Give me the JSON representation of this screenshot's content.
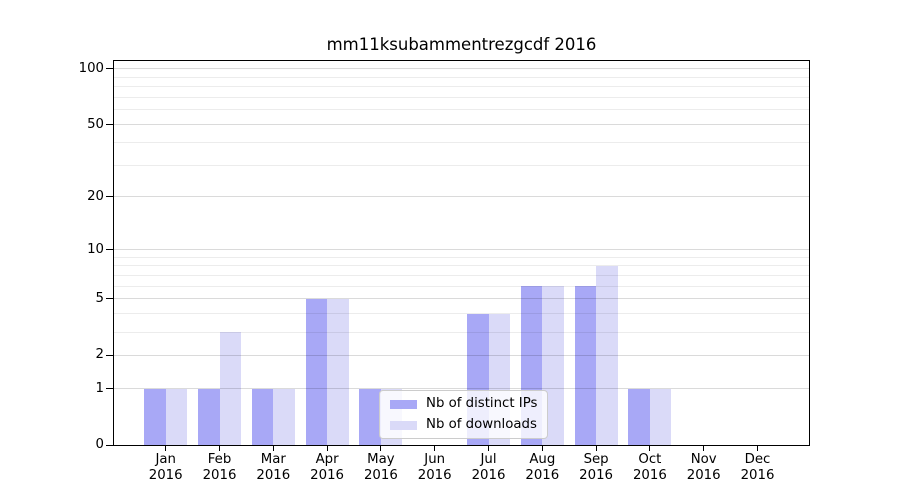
{
  "chart_data": {
    "type": "bar",
    "title": "mm11ksubammentrezgcdf 2016",
    "year_label": "2016",
    "months": [
      "Jan",
      "Feb",
      "Mar",
      "Apr",
      "May",
      "Jun",
      "Jul",
      "Aug",
      "Sep",
      "Oct",
      "Nov",
      "Dec"
    ],
    "series": [
      {
        "name": "Nb of distinct IPs",
        "color": "#a8a8f6",
        "values": [
          1,
          1,
          1,
          5,
          1,
          0,
          4,
          6,
          6,
          1,
          0,
          0
        ]
      },
      {
        "name": "Nb of downloads",
        "color": "#dadaf8",
        "values": [
          1,
          3,
          1,
          5,
          1,
          0,
          4,
          6,
          8,
          1,
          0,
          0
        ]
      }
    ],
    "y_axis": {
      "scale": "log1p",
      "major_ticks": [
        0,
        1,
        2,
        5,
        10,
        20,
        50,
        100
      ],
      "minor_ticks": [
        3,
        4,
        6,
        7,
        8,
        9,
        30,
        40,
        60,
        70,
        80,
        90
      ],
      "ylim": [
        0,
        113
      ]
    },
    "legend": {
      "position": "lower-center",
      "entries": [
        "Nb of distinct IPs",
        "Nb of downloads"
      ]
    },
    "grid": true,
    "colors": {
      "spine": "#000000",
      "background": "#ffffff",
      "legend_border": "#cccccc"
    }
  }
}
